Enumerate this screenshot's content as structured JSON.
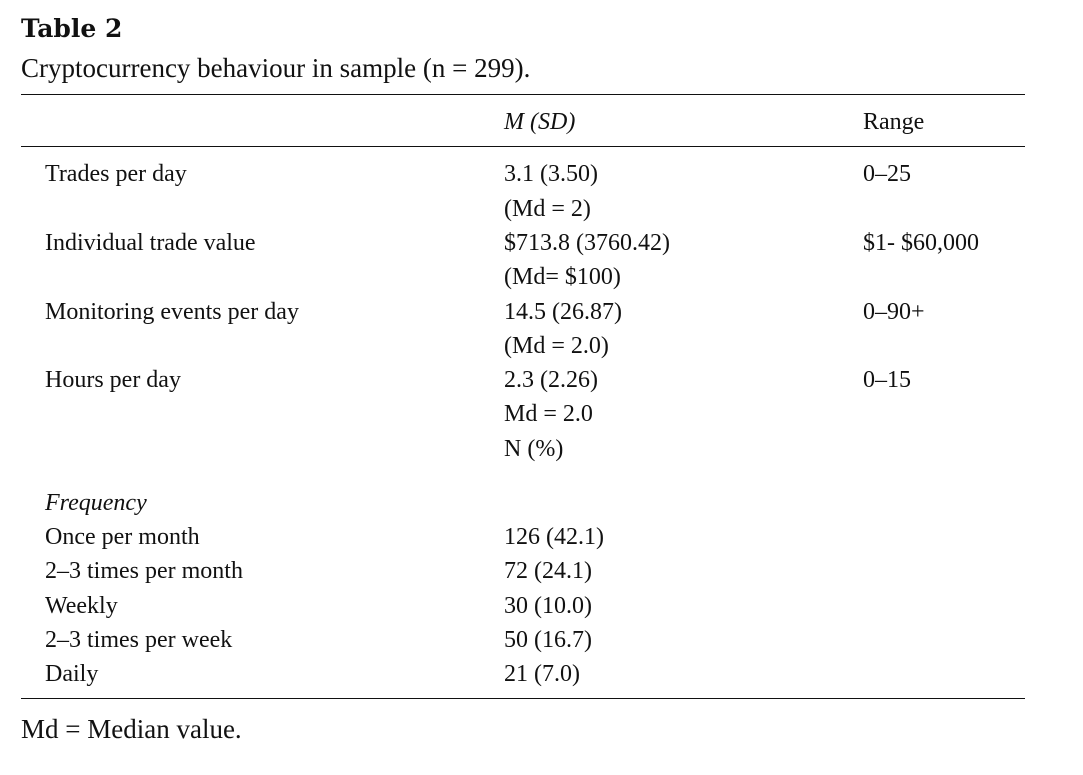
{
  "table": {
    "label": "Table 2",
    "caption": "Cryptocurrency behaviour in sample (n = 299).",
    "headers": {
      "col1": "",
      "col2": "M (SD)",
      "col3": "Range"
    },
    "rows": [
      {
        "label": "Trades per day",
        "value_lines": [
          "3.1 (3.50)",
          "(Md = 2)"
        ],
        "range": "0–25"
      },
      {
        "label": "Individual trade value",
        "value_lines": [
          "$713.8 (3760.42)",
          "(Md= $100)"
        ],
        "range": "$1- $60,000"
      },
      {
        "label": "Monitoring events per day",
        "value_lines": [
          "14.5 (26.87)",
          "(Md = 2.0)"
        ],
        "range": "0–90+"
      },
      {
        "label": "Hours per day",
        "value_lines": [
          "2.3 (2.26)",
          "Md = 2.0",
          "N (%)"
        ],
        "range": "0–15"
      }
    ],
    "frequency_heading": "Frequency",
    "frequency_rows": [
      {
        "label": "Once per month",
        "value": "126 (42.1)"
      },
      {
        "label": "2–3 times per month",
        "value": "72 (24.1)"
      },
      {
        "label": "Weekly",
        "value": "30 (10.0)"
      },
      {
        "label": "2–3 times per week",
        "value": "50 (16.7)"
      },
      {
        "label": "Daily",
        "value": "21 (7.0)"
      }
    ],
    "footnote": "Md = Median value."
  }
}
